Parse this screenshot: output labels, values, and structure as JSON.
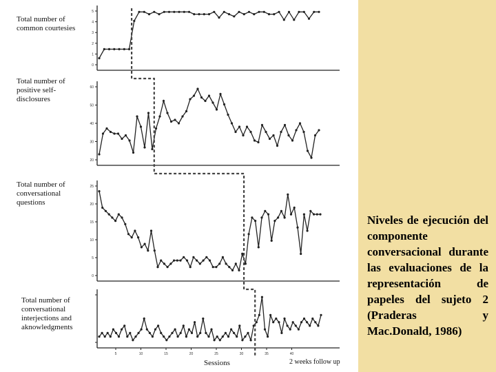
{
  "caption": "Niveles de ejecución del componente conversacional durante las evaluaciones de la representación de papeles del sujeto 2 (Praderas y Mac.Donald, 1986)",
  "colors": {
    "background": "#ffffff",
    "panel": "#f2dfa3",
    "line": "#222222",
    "phase_line": "#444444"
  },
  "chart_data": {
    "type": "line",
    "xlabel": "Sessions",
    "followup_label": "2 weeks follow up",
    "x_tick_labels": [
      "5",
      "10",
      "15",
      "20",
      "25",
      "30",
      "35",
      "40"
    ],
    "panels": [
      {
        "ylabel": "Total number of common courtesies",
        "ylim": [
          0,
          5
        ],
        "y_tick_labels": [
          "5",
          "4",
          "3",
          "2",
          "1",
          "0"
        ],
        "values": [
          0.7,
          1.5,
          1.5,
          1.5,
          1.5,
          1.5,
          1.5,
          4,
          4.8,
          4.8,
          4.6,
          4.8,
          4.6,
          4.8,
          4.8,
          4.8,
          4.8,
          4.8,
          4.8,
          4.6,
          4.6,
          4.6,
          4.6,
          4.8,
          4.3,
          4.8,
          4.6,
          4.4,
          4.8,
          4.6,
          4.8,
          4.6,
          4.8,
          4.8,
          4.6,
          4.6,
          4.8,
          4.1,
          4.8,
          4.1,
          4.8,
          4.8,
          4.2,
          4.8,
          4.8
        ],
        "phase_change_after": 7
      },
      {
        "ylabel": "Total number of positive self-disclosures",
        "ylim": [
          18,
          62
        ],
        "y_tick_labels": [
          "60",
          "50",
          "40",
          "30",
          "20"
        ],
        "values": [
          22,
          34,
          37,
          35,
          34,
          34,
          31,
          33,
          30,
          23,
          44,
          38,
          26,
          46,
          25,
          37,
          44,
          53,
          46,
          41,
          42,
          40,
          44,
          47,
          54,
          56,
          60,
          55,
          53,
          56,
          52,
          48,
          57,
          51,
          45,
          40,
          35,
          38,
          33,
          38,
          35,
          30,
          29,
          39,
          35,
          31,
          33,
          27,
          35,
          39,
          33,
          30,
          36,
          40,
          35,
          24,
          20,
          33,
          36
        ],
        "phase_change_after": 15
      },
      {
        "ylabel": "Total number of conversational questions",
        "ylim": [
          0,
          28
        ],
        "y_tick_labels": [
          "25",
          "20",
          "15",
          "10",
          "5",
          "0"
        ],
        "values": [
          26,
          21,
          20,
          19,
          18,
          17,
          19,
          18,
          16,
          13,
          12,
          14,
          12,
          9,
          10,
          8,
          14,
          8,
          3,
          5,
          4,
          3,
          4,
          5,
          5,
          5,
          6,
          5,
          3,
          6,
          5,
          4,
          5,
          6,
          5,
          3,
          3,
          4,
          6,
          4,
          3,
          2,
          4,
          2,
          7,
          4,
          13,
          18,
          17,
          9,
          18,
          20,
          19,
          11,
          17,
          18,
          20,
          18,
          25,
          19,
          21,
          15,
          7,
          19,
          14,
          20,
          19,
          19,
          19
        ],
        "phase_change_after": 45
      },
      {
        "ylabel": "Total number of conversational interjections and aknowledgments",
        "ylim": [
          0,
          14
        ],
        "y_tick_labels": [
          "",
          ""
        ],
        "values": [
          2,
          3,
          2,
          3,
          2,
          4,
          3,
          2,
          4,
          5,
          2,
          3,
          1,
          2,
          3,
          4,
          7,
          4,
          3,
          2,
          4,
          5,
          3,
          2,
          1,
          2,
          3,
          4,
          2,
          3,
          5,
          2,
          4,
          3,
          6,
          2,
          3,
          7,
          3,
          2,
          4,
          1,
          2,
          1,
          2,
          3,
          2,
          4,
          3,
          2,
          5,
          1,
          2,
          3,
          1,
          5,
          6,
          8,
          13,
          4,
          2,
          8,
          6,
          7,
          6,
          3,
          7,
          5,
          4,
          6,
          5,
          4,
          6,
          7,
          6,
          5,
          7,
          6,
          5,
          8
        ],
        "phase_change_after": 56
      }
    ]
  }
}
